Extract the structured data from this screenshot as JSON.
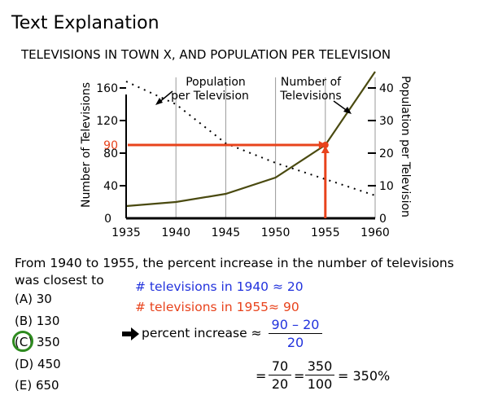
{
  "heading": "Text Explanation",
  "chart_data": {
    "type": "line",
    "title": "TELEVISIONS IN TOWN X, AND POPULATION PER TELEVISION",
    "x": [
      1935,
      1940,
      1945,
      1950,
      1955,
      1960
    ],
    "xticks": [
      "1935",
      "1940",
      "1945",
      "1950",
      "1955",
      "1960"
    ],
    "xlim": [
      1935,
      1960
    ],
    "left_axis": {
      "label": "Number of Televisions",
      "ticks": [
        "0",
        "40",
        "80",
        "120",
        "160"
      ],
      "ylim": [
        0,
        180
      ]
    },
    "right_axis": {
      "label": "Population per Television",
      "ticks": [
        "0",
        "10",
        "20",
        "30",
        "40"
      ],
      "ylim": [
        0,
        45
      ]
    },
    "grid": "vertical",
    "series": [
      {
        "name": "Number of Televisions",
        "axis": "left",
        "style": "solid",
        "color": "#4a4a10",
        "x": [
          1935,
          1940,
          1945,
          1950,
          1955,
          1960
        ],
        "values": [
          15,
          20,
          30,
          50,
          90,
          180
        ]
      },
      {
        "name": "Population per Television",
        "axis": "right",
        "style": "dotted",
        "color": "#000000",
        "x": [
          1935,
          1940,
          1945,
          1950,
          1955,
          1960
        ],
        "values": [
          42,
          35,
          23,
          17,
          12,
          7
        ]
      }
    ],
    "legend_labels": [
      {
        "lines": [
          "Population",
          "per Television"
        ],
        "series": "Population per Television"
      },
      {
        "lines": [
          "Number of",
          "Televisions"
        ],
        "series": "Number of Televisions"
      }
    ],
    "annotation": {
      "label": "90",
      "x": 1955,
      "y": 90,
      "color": "#e8431c"
    }
  },
  "question": {
    "text": "From 1940 to 1955, the percent increase in the number of televisions was closest to",
    "choices": [
      "(A) 30",
      "(B) 130",
      "(C) 350",
      "(D) 450",
      "(E) 650"
    ],
    "selected_index": 2,
    "selected_color": "#2e8a1f"
  },
  "explanation": {
    "line1": "# televisions in 1940 ≈ 20",
    "line2": "# televisions in 1955≈ 90",
    "percent_label": "percent increase ≈",
    "frac1": {
      "num": "90 – 20",
      "den": "20"
    },
    "eq": "=",
    "frac2": {
      "num": "70",
      "den": "20"
    },
    "frac3": {
      "num": "350",
      "den": "100"
    },
    "result": "= 350%"
  }
}
